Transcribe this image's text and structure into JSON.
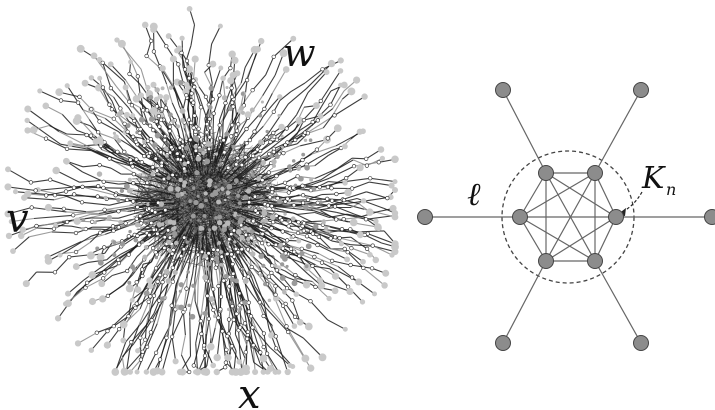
{
  "left_panel": {
    "labels": {
      "v": "v",
      "w": "w",
      "x": "x"
    }
  },
  "right_panel": {
    "labels": {
      "ell": "ℓ",
      "K": "K",
      "n": "n"
    },
    "clique_size": 6
  },
  "colors": {
    "node_fill": "#8c8c8c",
    "node_stroke": "#444444",
    "edge": "#666666",
    "dark_edge": "#1c1c1c",
    "light_node": "#c9c9c9",
    "background": "#ffffff"
  }
}
